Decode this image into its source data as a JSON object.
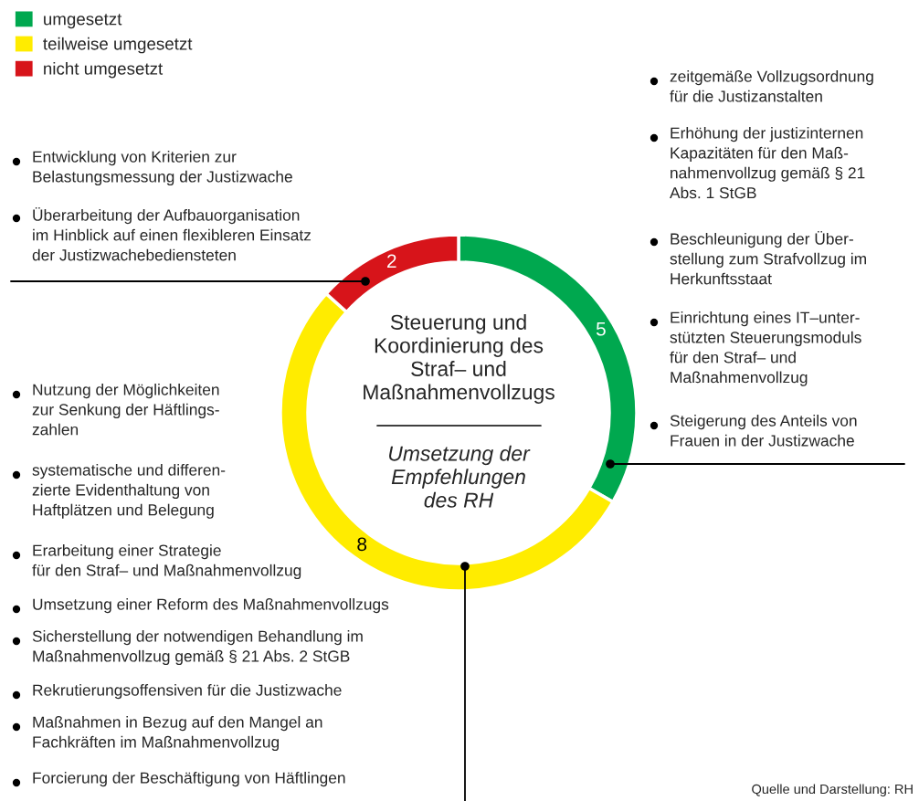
{
  "chart_data": {
    "type": "donut",
    "title": "Steuerung und\nKoordinierung des\nStraf– und\nMaßnahmenvollzugs",
    "subtitle": "Umsetzung der\nEmpfehlungen\ndes RH",
    "categories": [
      "umgesetzt",
      "teilweise umgesetzt",
      "nicht umgesetzt"
    ],
    "values": [
      5,
      8,
      2
    ],
    "colors": [
      "#00a84f",
      "#ffec00",
      "#d7141a"
    ],
    "data_labels": true,
    "legend": "top left",
    "annotations": [
      "Entwicklung von Kriterien zur\nBelastungsmessung der Justizwache",
      "Überarbeitung der Aufbauorganisation\nim Hinblick auf einen flexibleren Einsatz\nder Justizwachebediensteten",
      "zeitgemäße Vollzugsordnung\nfür die Justizanstalten",
      "Erhöhung der justizinternen\nKapazitäten für den Maß-\nnahmenvollzug gemäß § 21\nAbs. 1 StGB",
      "Beschleunigung der Über-\nstellung zum Strafvollzug im\nHerkunftsstaat",
      "Einrichtung eines IT–unter-\nstützten Steuerungsmoduls\nfür den Straf– und\nMaßnahmenvollzug",
      "Steigerung des Anteils von\nFrauen in der Justizwache",
      "Nutzung der Möglichkeiten\nzur Senkung der Häftlings-\nzahlen",
      "systematische und differen-\nzierte Evidenthaltung von\nHaftplätzen und Belegung",
      "Erarbeitung einer Strategie\nfür den Straf– und Maßnahmenvollzug",
      "Umsetzung einer Reform des Maßnahmenvollzugs",
      "Sicherstellung der notwendigen Behandlung im\nMaßnahmenvollzug gemäß § 21 Abs. 2 StGB",
      "Rekrutierungsoffensiven für die Justizwache",
      "Maßnahmen in Bezug auf den Mangel an\nFachkräften im Maßnahmenvollzug",
      "Forcierung der Beschäftigung von Häftlingen",
      "Quelle und Darstellung: RH"
    ]
  }
}
